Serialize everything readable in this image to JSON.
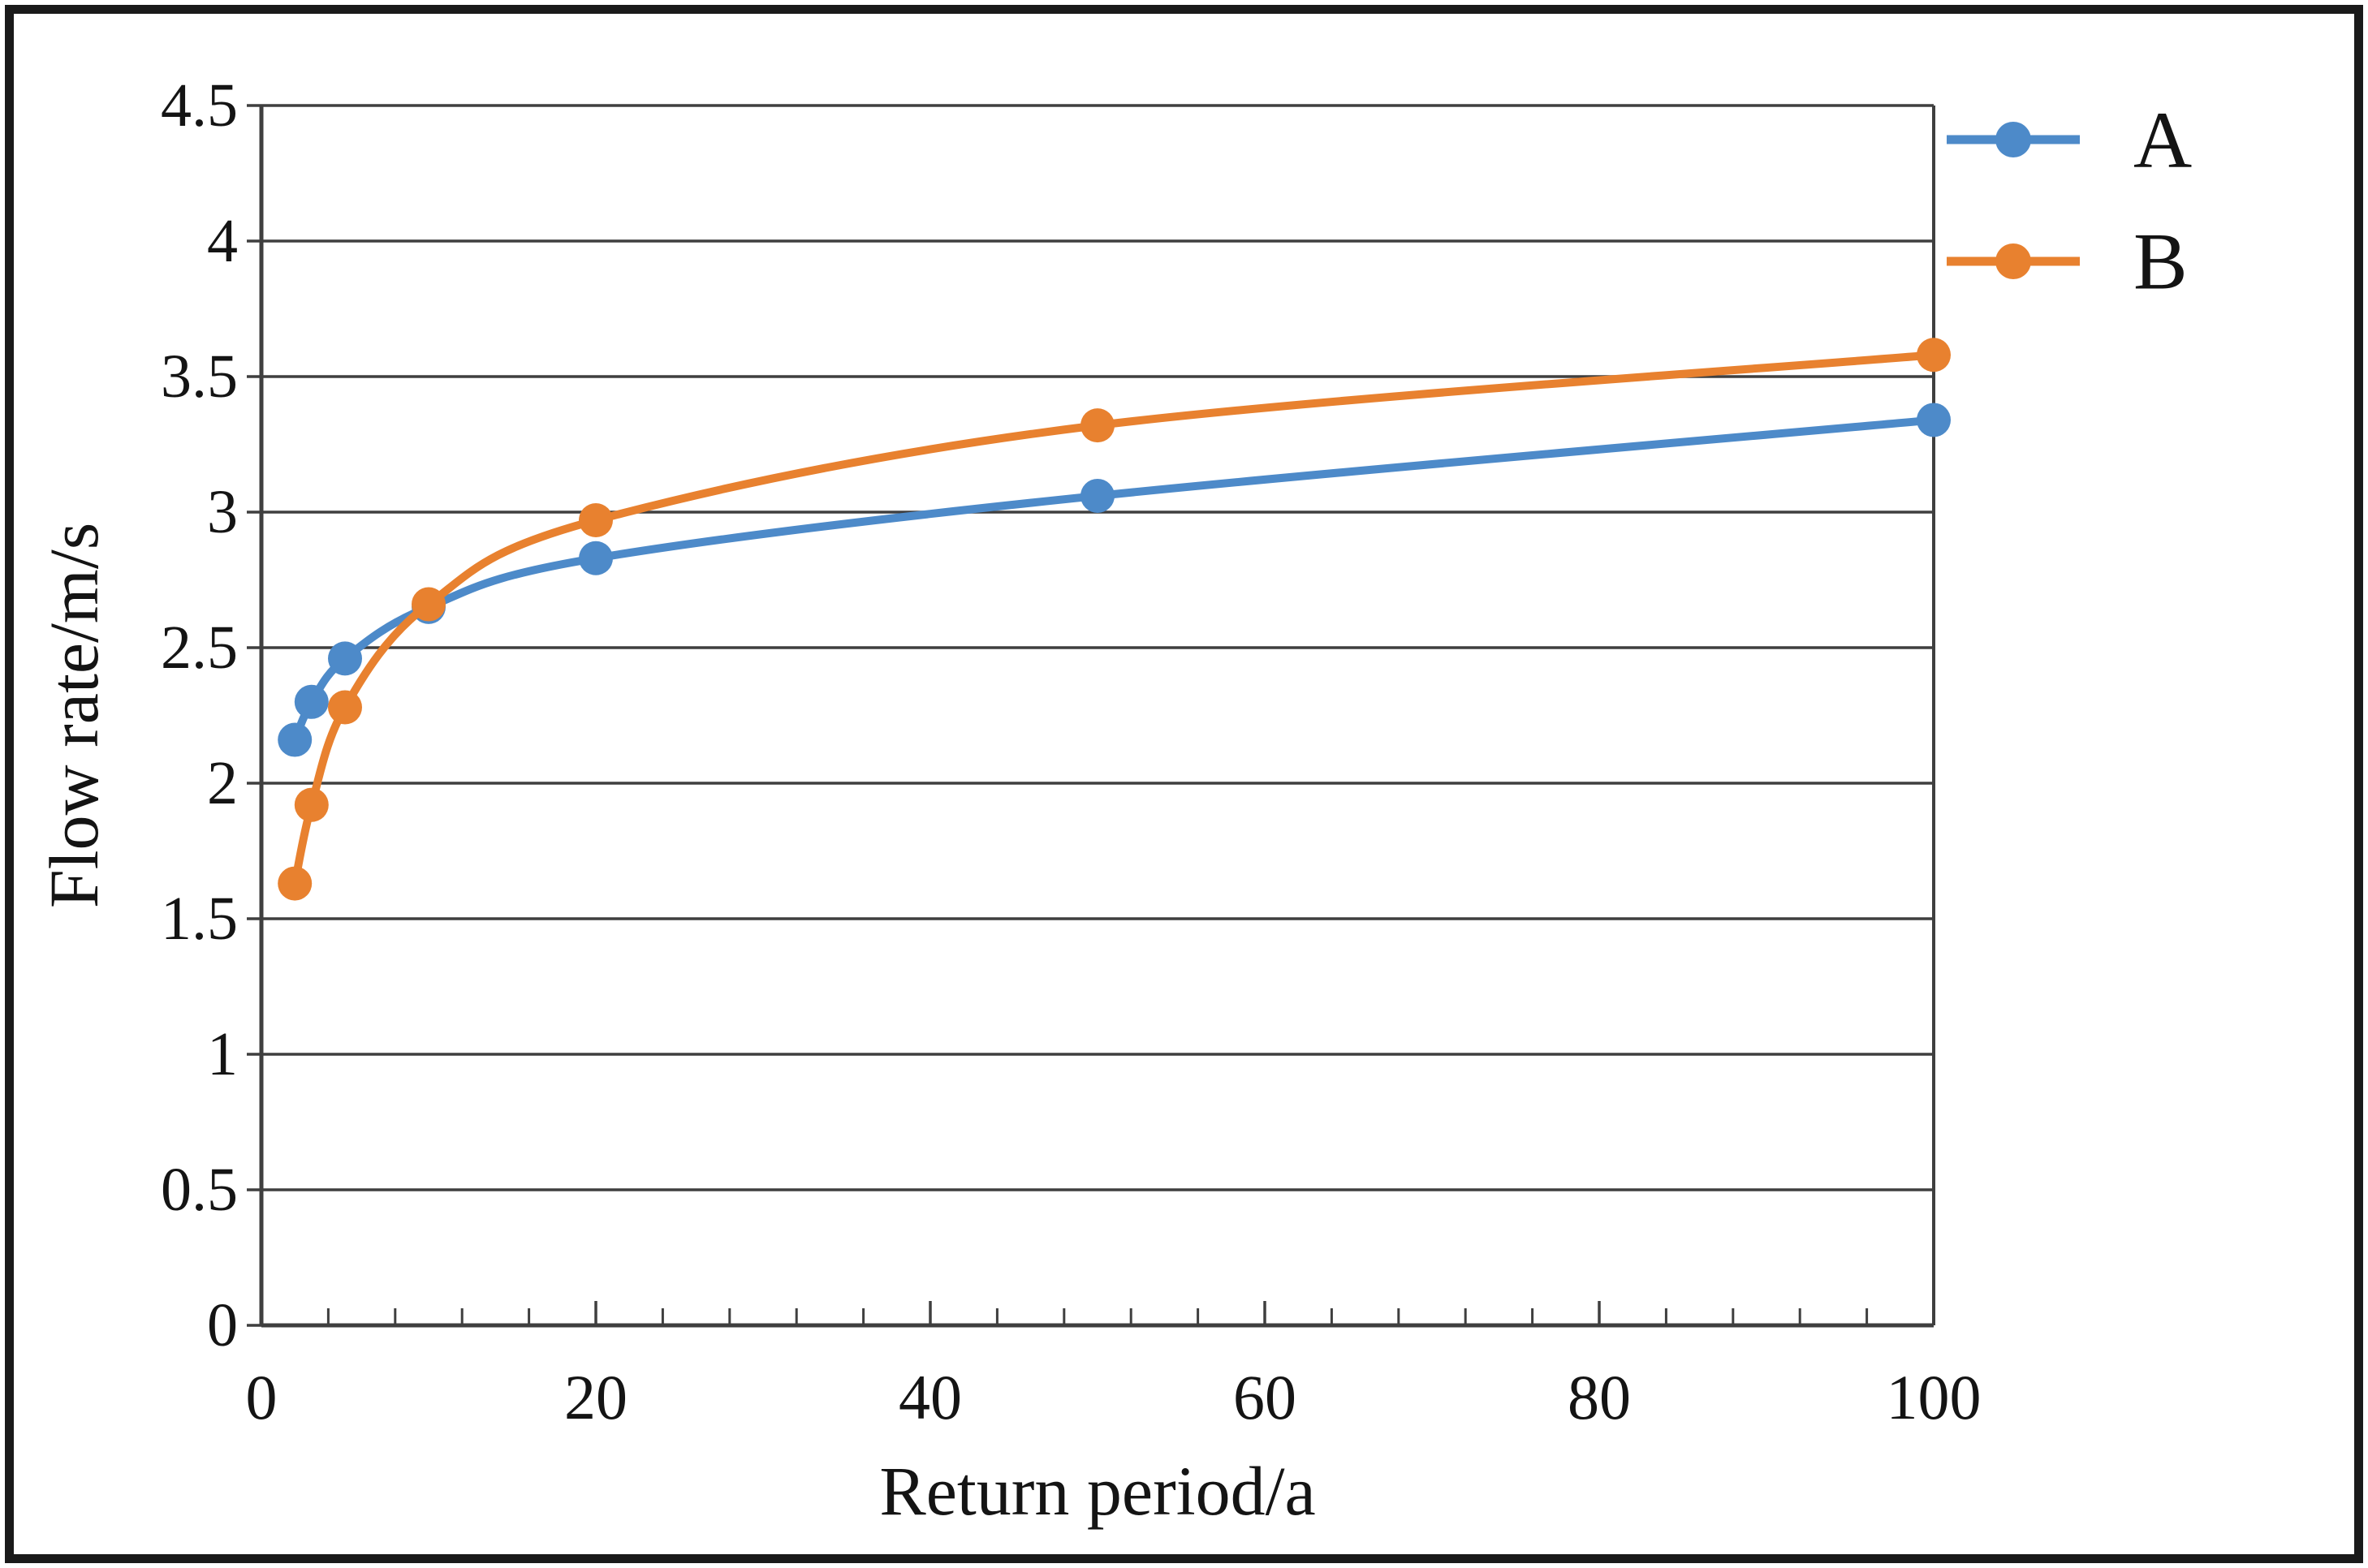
{
  "figure": {
    "background": "#ffffff",
    "border_color": "#1a1a1a",
    "text_color": "#141414",
    "gridline_color": "#3f3f3f"
  },
  "chart_data": {
    "type": "line",
    "title": "",
    "xlabel": "Return period/a",
    "ylabel": "Flow rate/m/s",
    "x": [
      2,
      3,
      5,
      10,
      20,
      50,
      100
    ],
    "series": [
      {
        "name": "A",
        "color": "#4d8ac9",
        "values": [
          2.16,
          2.3,
          2.46,
          2.65,
          2.83,
          3.06,
          3.34
        ]
      },
      {
        "name": "B",
        "color": "#e8812f",
        "values": [
          1.63,
          1.92,
          2.28,
          2.66,
          2.97,
          3.32,
          3.58
        ]
      }
    ],
    "xlim": [
      0,
      100
    ],
    "ylim": [
      0,
      4.5
    ],
    "x_major_ticks": [
      0,
      20,
      40,
      60,
      80,
      100
    ],
    "x_major_tick_labels": [
      "0",
      "20",
      "40",
      "60",
      "80",
      "100"
    ],
    "x_minor_tick_step": 4,
    "y_ticks": [
      0,
      0.5,
      1,
      1.5,
      2,
      2.5,
      3,
      3.5,
      4,
      4.5
    ],
    "y_tick_labels": [
      "0",
      "0.5",
      "1",
      "1.5",
      "2",
      "2.5",
      "3",
      "3.5",
      "4",
      "4.5"
    ],
    "grid": "horizontal",
    "smooth": true,
    "marker": "circle",
    "legend_position": "right-top",
    "legend_entries": [
      "A",
      "B"
    ]
  }
}
